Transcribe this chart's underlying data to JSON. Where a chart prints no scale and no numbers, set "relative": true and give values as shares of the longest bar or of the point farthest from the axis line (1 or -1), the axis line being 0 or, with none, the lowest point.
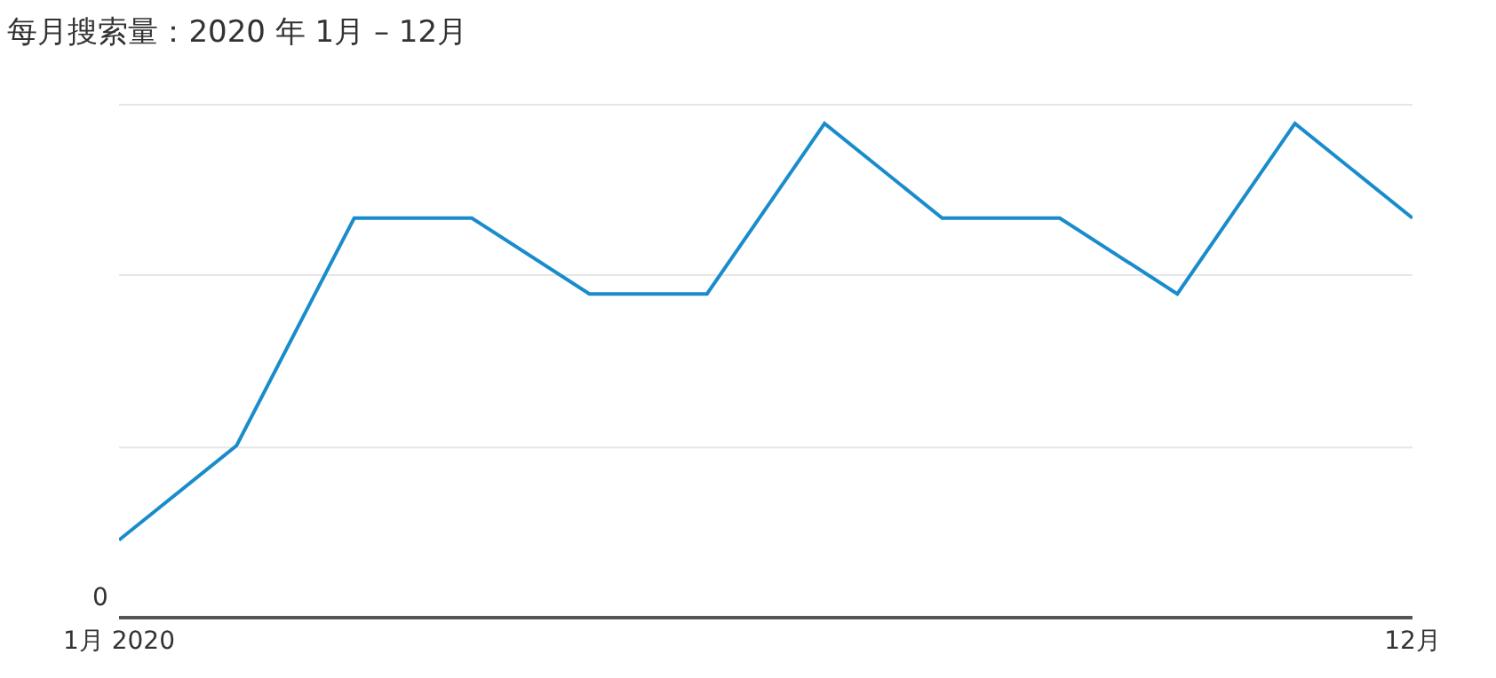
{
  "chart_data": {
    "type": "line",
    "title": "每月搜索量：2020 年 1月 – 12月",
    "categories": [
      "1月 2020",
      null,
      null,
      null,
      null,
      null,
      null,
      null,
      null,
      null,
      null,
      "12月"
    ],
    "series": [
      {
        "color": "#1a8ccc",
        "values": [
          0.154,
          0.346,
          0.808,
          0.808,
          0.654,
          0.654,
          1,
          0.808,
          0.808,
          0.654,
          1,
          0.808
        ]
      }
    ],
    "relative": true,
    "legend": false,
    "marker": "none",
    "line_style": "solid",
    "ref_lines": [
      {
        "axis": "y",
        "value": 0.342,
        "color": "#e6e6e6"
      },
      {
        "axis": "y",
        "value": 0.692,
        "color": "#e6e6e6"
      },
      {
        "axis": "y",
        "value": 1.038,
        "color": "#e6e6e6"
      }
    ],
    "annotations": [
      "0"
    ]
  }
}
